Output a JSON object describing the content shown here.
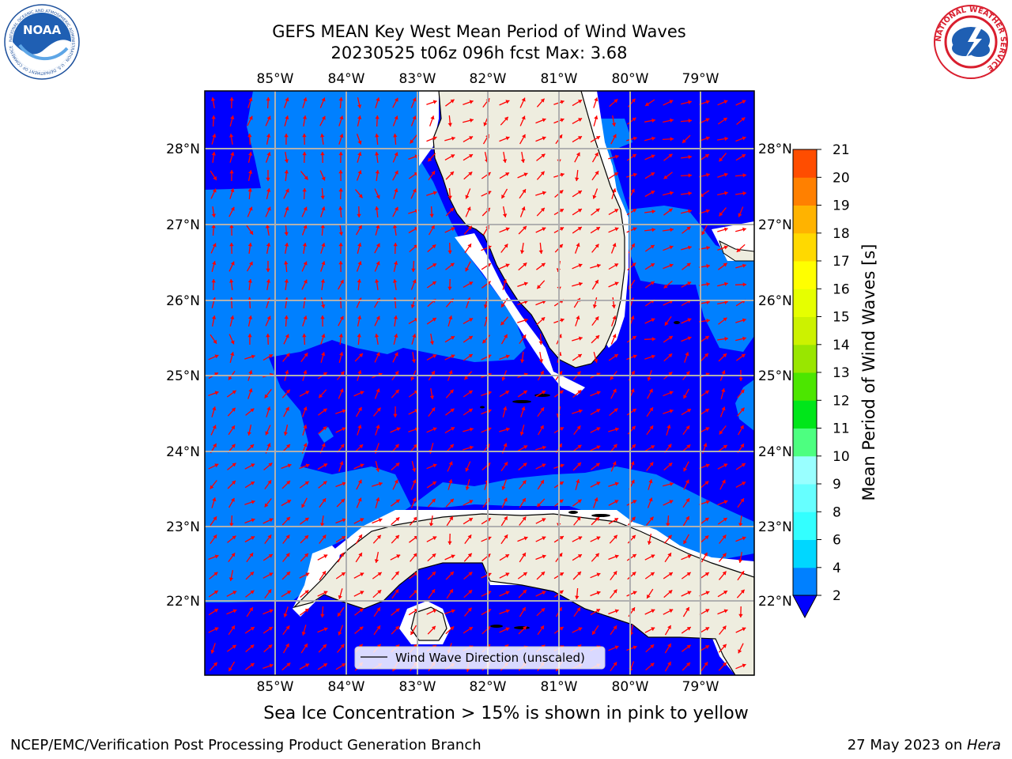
{
  "header": {
    "title_line1": "GEFS MEAN Key West Mean Period of Wind Waves",
    "title_line2": "20230525 t06z 096h fcst   Max: 3.68",
    "left_logo": "noaa-logo",
    "right_logo": "national-weather-service-logo",
    "left_logo_text": "NOAA",
    "left_logo_ring": "NATIONAL OCEANIC AND ATMOSPHERIC ADMINISTRATION · U.S. DEPARTMENT OF COMMERCE",
    "right_logo_ring": "NATIONAL WEATHER SERVICE"
  },
  "map": {
    "lon_labels": [
      "85°W",
      "84°W",
      "83°W",
      "82°W",
      "81°W",
      "80°W",
      "79°W"
    ],
    "lat_labels": [
      "28°N",
      "27°N",
      "26°N",
      "25°N",
      "24°N",
      "23°N",
      "22°N"
    ],
    "lon_range": [
      -86.0,
      -78.25
    ],
    "lat_range": [
      21.07,
      28.77
    ],
    "legend_label": "Wind Wave Direction (unscaled)",
    "colors": {
      "land": "#eeeddf",
      "coast": "#000000",
      "grid": "#b0b0b0",
      "arrow": "#ff0000",
      "band_2_4": "#0080ff",
      "band_below_2": "#0000ff"
    }
  },
  "colorbar": {
    "label": "Mean Period of Wind Waves [s]",
    "ticks": [
      "2",
      "4",
      "6",
      "8",
      "9",
      "10",
      "11",
      "12",
      "13",
      "14",
      "15",
      "16",
      "17",
      "18",
      "19",
      "20",
      "21"
    ],
    "colors": [
      "#0080ff",
      "#00d7ff",
      "#33ffff",
      "#66ffff",
      "#99ffff",
      "#4dff80",
      "#00e61a",
      "#4ce600",
      "#99e600",
      "#ccf200",
      "#e6ff00",
      "#ffff00",
      "#ffd900",
      "#ffb300",
      "#ff8000",
      "#ff4d00",
      "#ff1a00"
    ],
    "extend_color": "#0000ff"
  },
  "footer": {
    "ice_note": "Sea Ice Concentration > 15% is shown in pink to yellow",
    "left": "NCEP/EMC/Verification Post Processing Product Generation Branch",
    "right_date": "27 May 2023 on ",
    "right_machine": "Hera"
  }
}
